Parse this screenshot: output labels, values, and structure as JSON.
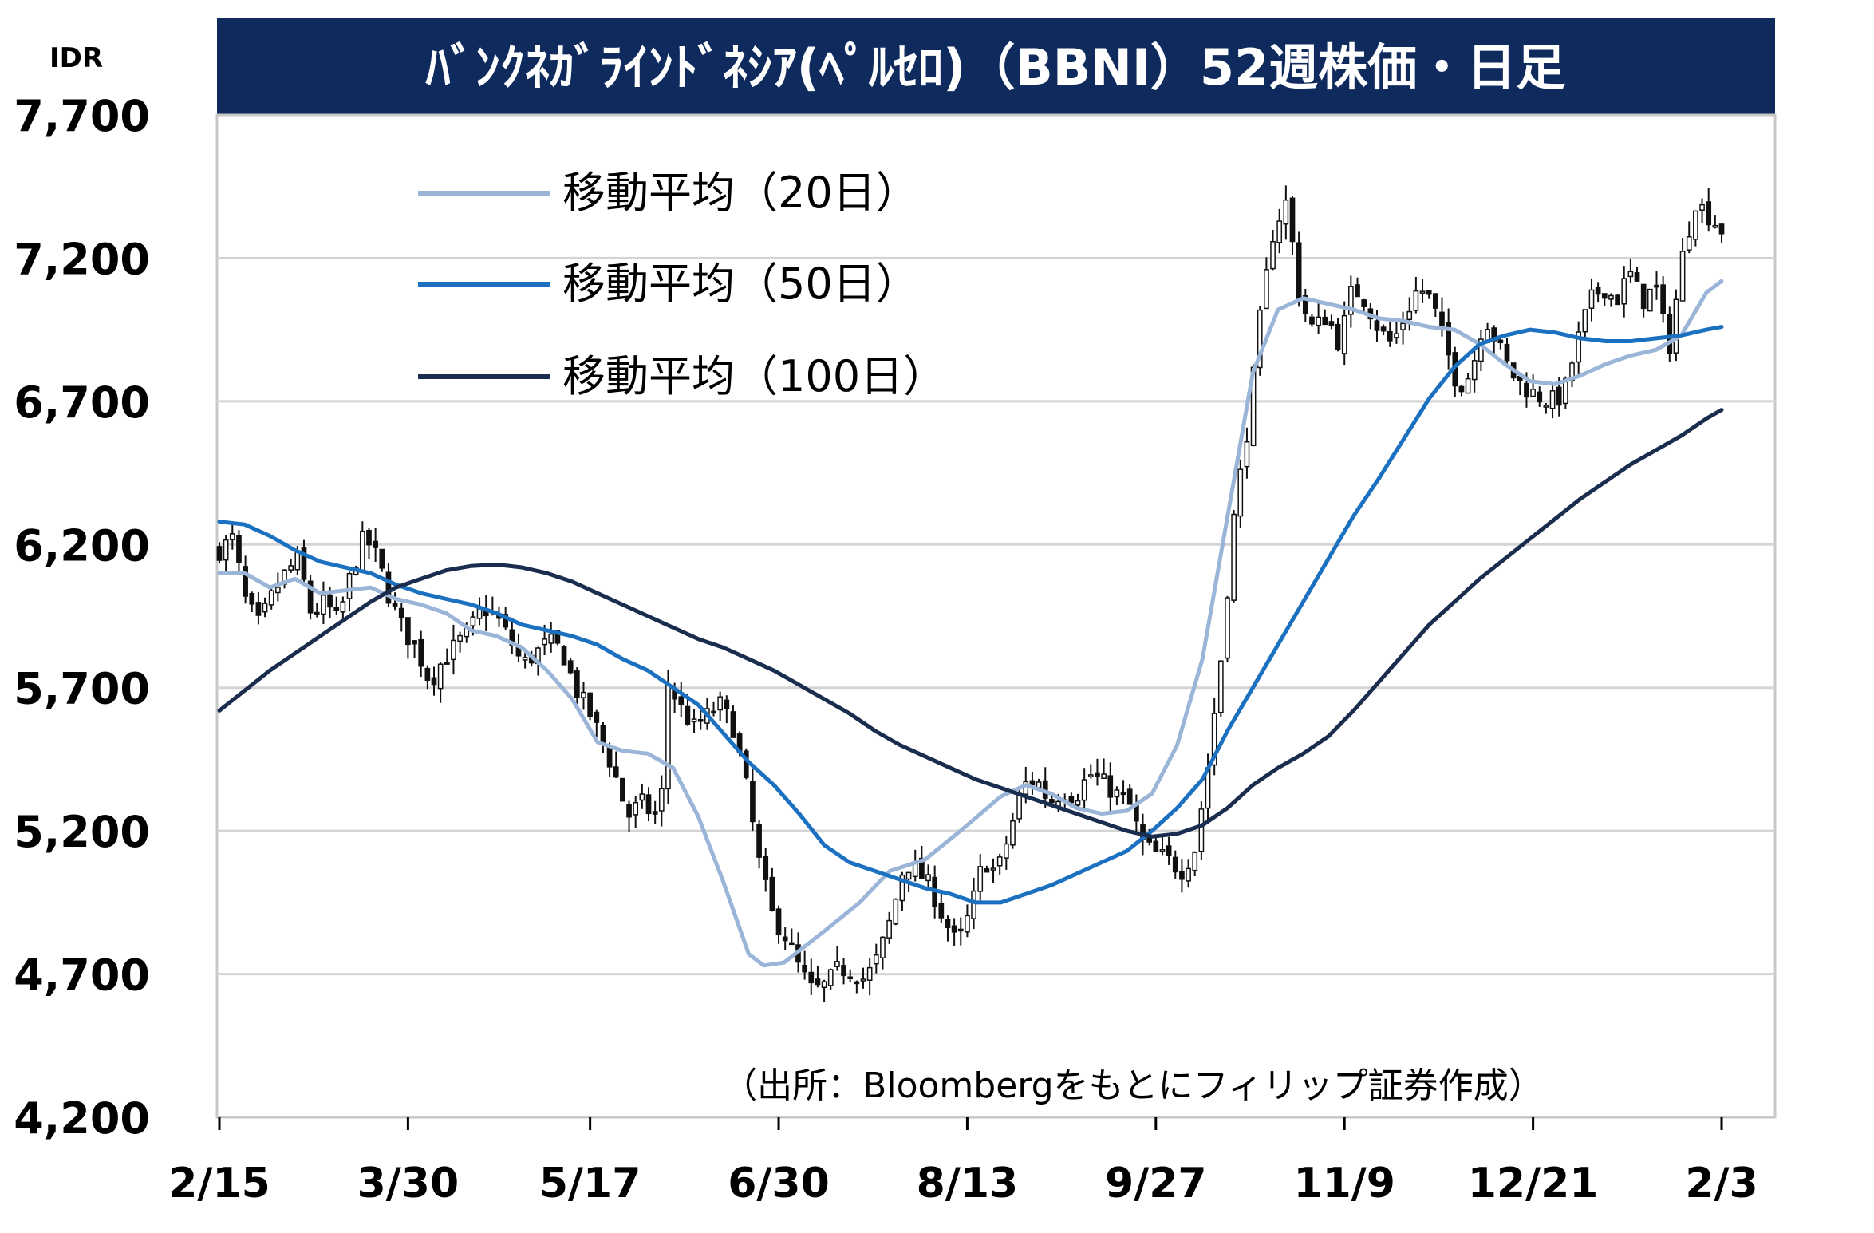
{
  "chart_data": {
    "type": "candlestick-line",
    "title": "ﾊﾞﾝｸﾈｶﾞﾗｲﾝﾄﾞﾈｼｱ(ﾍﾟﾙｾﾛ)（BBNI）52週株価・日足",
    "unit_label": "IDR",
    "ylim": [
      4200,
      7700
    ],
    "y_ticks": [
      "7,700",
      "7,200",
      "6,700",
      "6,200",
      "5,700",
      "5,200",
      "4,700",
      "4,200"
    ],
    "y_tick_values": [
      7700,
      7200,
      6700,
      6200,
      5700,
      5200,
      4700,
      4200
    ],
    "x_ticks": [
      "2/15",
      "3/30",
      "5/17",
      "6/30",
      "8/13",
      "9/27",
      "11/9",
      "12/21",
      "2/3"
    ],
    "x_tick_index": [
      0,
      29,
      57,
      86,
      115,
      144,
      173,
      202,
      231
    ],
    "n_days": 232,
    "grid": true,
    "legend_placement": "top-left",
    "source_note": "（出所：Bloombergをもとにフィリップ証券作成）",
    "colors": {
      "title_bg": "#0f2a5c",
      "ma20": "#9ab5d8",
      "ma50": "#1b70c0",
      "ma100": "#1a2d4e",
      "candle_up": "#ffffff",
      "candle_down": "#111111",
      "candle_outline": "#111111"
    },
    "series": [
      {
        "name": "移動平均（20日）",
        "key": "ma20",
        "points": [
          [
            0,
            6100
          ],
          [
            5,
            6100
          ],
          [
            10,
            6050
          ],
          [
            15,
            6080
          ],
          [
            20,
            6030
          ],
          [
            25,
            6040
          ],
          [
            30,
            6050
          ],
          [
            35,
            6010
          ],
          [
            40,
            5990
          ],
          [
            45,
            5960
          ],
          [
            50,
            5900
          ],
          [
            55,
            5880
          ],
          [
            60,
            5840
          ],
          [
            65,
            5760
          ],
          [
            70,
            5660
          ],
          [
            75,
            5510
          ],
          [
            80,
            5480
          ],
          [
            85,
            5470
          ],
          [
            90,
            5420
          ],
          [
            95,
            5250
          ],
          [
            100,
            5020
          ],
          [
            105,
            4770
          ],
          [
            108,
            4730
          ],
          [
            112,
            4740
          ],
          [
            120,
            4850
          ],
          [
            127,
            4950
          ],
          [
            133,
            5060
          ],
          [
            140,
            5100
          ],
          [
            147,
            5200
          ],
          [
            155,
            5320
          ],
          [
            160,
            5360
          ],
          [
            165,
            5330
          ],
          [
            170,
            5280
          ],
          [
            175,
            5260
          ],
          [
            180,
            5270
          ],
          [
            185,
            5330
          ],
          [
            190,
            5500
          ],
          [
            195,
            5800
          ],
          [
            200,
            6300
          ],
          [
            205,
            6800
          ],
          [
            210,
            7020
          ],
          [
            215,
            7060
          ],
          [
            220,
            7040
          ],
          [
            225,
            7020
          ],
          [
            230,
            6990
          ],
          [
            235,
            6980
          ],
          [
            240,
            6960
          ],
          [
            245,
            6950
          ],
          [
            250,
            6900
          ],
          [
            255,
            6830
          ],
          [
            260,
            6770
          ],
          [
            265,
            6760
          ],
          [
            270,
            6790
          ],
          [
            275,
            6830
          ],
          [
            280,
            6860
          ],
          [
            285,
            6880
          ],
          [
            290,
            6930
          ],
          [
            295,
            7080
          ],
          [
            298,
            7120
          ]
        ]
      },
      {
        "name": "移動平均（50日）",
        "key": "ma50",
        "points": [
          [
            0,
            6280
          ],
          [
            5,
            6270
          ],
          [
            10,
            6230
          ],
          [
            15,
            6180
          ],
          [
            20,
            6140
          ],
          [
            25,
            6120
          ],
          [
            30,
            6100
          ],
          [
            35,
            6060
          ],
          [
            40,
            6030
          ],
          [
            45,
            6010
          ],
          [
            50,
            5990
          ],
          [
            55,
            5960
          ],
          [
            60,
            5920
          ],
          [
            65,
            5900
          ],
          [
            70,
            5880
          ],
          [
            75,
            5850
          ],
          [
            80,
            5800
          ],
          [
            85,
            5760
          ],
          [
            90,
            5700
          ],
          [
            95,
            5640
          ],
          [
            100,
            5540
          ],
          [
            105,
            5440
          ],
          [
            110,
            5360
          ],
          [
            115,
            5260
          ],
          [
            120,
            5150
          ],
          [
            125,
            5090
          ],
          [
            130,
            5060
          ],
          [
            135,
            5030
          ],
          [
            140,
            5000
          ],
          [
            145,
            4980
          ],
          [
            150,
            4950
          ],
          [
            155,
            4950
          ],
          [
            160,
            4980
          ],
          [
            165,
            5010
          ],
          [
            170,
            5050
          ],
          [
            175,
            5090
          ],
          [
            180,
            5130
          ],
          [
            185,
            5200
          ],
          [
            190,
            5280
          ],
          [
            195,
            5380
          ],
          [
            200,
            5550
          ],
          [
            205,
            5700
          ],
          [
            210,
            5850
          ],
          [
            215,
            6000
          ],
          [
            220,
            6150
          ],
          [
            225,
            6300
          ],
          [
            230,
            6430
          ],
          [
            235,
            6570
          ],
          [
            240,
            6710
          ],
          [
            245,
            6820
          ],
          [
            250,
            6900
          ],
          [
            255,
            6930
          ],
          [
            260,
            6950
          ],
          [
            265,
            6940
          ],
          [
            270,
            6920
          ],
          [
            275,
            6910
          ],
          [
            280,
            6910
          ],
          [
            285,
            6920
          ],
          [
            290,
            6930
          ],
          [
            295,
            6950
          ],
          [
            298,
            6960
          ]
        ]
      },
      {
        "name": "移動平均（100日）",
        "key": "ma100",
        "points": [
          [
            0,
            5620
          ],
          [
            5,
            5690
          ],
          [
            10,
            5760
          ],
          [
            15,
            5820
          ],
          [
            20,
            5880
          ],
          [
            25,
            5940
          ],
          [
            30,
            6000
          ],
          [
            35,
            6050
          ],
          [
            40,
            6080
          ],
          [
            45,
            6110
          ],
          [
            50,
            6125
          ],
          [
            55,
            6130
          ],
          [
            60,
            6120
          ],
          [
            65,
            6100
          ],
          [
            70,
            6070
          ],
          [
            75,
            6030
          ],
          [
            80,
            5990
          ],
          [
            85,
            5950
          ],
          [
            90,
            5910
          ],
          [
            95,
            5870
          ],
          [
            100,
            5840
          ],
          [
            105,
            5800
          ],
          [
            110,
            5760
          ],
          [
            115,
            5710
          ],
          [
            120,
            5660
          ],
          [
            125,
            5610
          ],
          [
            130,
            5550
          ],
          [
            135,
            5500
          ],
          [
            140,
            5460
          ],
          [
            145,
            5420
          ],
          [
            150,
            5380
          ],
          [
            155,
            5350
          ],
          [
            160,
            5320
          ],
          [
            165,
            5290
          ],
          [
            170,
            5260
          ],
          [
            175,
            5230
          ],
          [
            180,
            5200
          ],
          [
            185,
            5180
          ],
          [
            190,
            5190
          ],
          [
            195,
            5220
          ],
          [
            200,
            5280
          ],
          [
            205,
            5360
          ],
          [
            210,
            5420
          ],
          [
            215,
            5470
          ],
          [
            220,
            5530
          ],
          [
            225,
            5620
          ],
          [
            230,
            5720
          ],
          [
            235,
            5820
          ],
          [
            240,
            5920
          ],
          [
            245,
            6000
          ],
          [
            250,
            6080
          ],
          [
            255,
            6150
          ],
          [
            260,
            6220
          ],
          [
            265,
            6290
          ],
          [
            270,
            6360
          ],
          [
            275,
            6420
          ],
          [
            280,
            6480
          ],
          [
            285,
            6530
          ],
          [
            290,
            6580
          ],
          [
            295,
            6640
          ],
          [
            298,
            6670
          ]
        ]
      }
    ],
    "candle_path": [
      [
        0,
        6180
      ],
      [
        4,
        6220
      ],
      [
        8,
        6000
      ],
      [
        12,
        5920
      ],
      [
        16,
        6020
      ],
      [
        20,
        6100
      ],
      [
        24,
        6150
      ],
      [
        28,
        5950
      ],
      [
        32,
        6000
      ],
      [
        36,
        5930
      ],
      [
        40,
        6100
      ],
      [
        44,
        6230
      ],
      [
        48,
        6150
      ],
      [
        52,
        6000
      ],
      [
        56,
        5900
      ],
      [
        60,
        5830
      ],
      [
        64,
        5720
      ],
      [
        68,
        5800
      ],
      [
        72,
        5850
      ],
      [
        76,
        5900
      ],
      [
        80,
        5980
      ],
      [
        84,
        5950
      ],
      [
        88,
        5870
      ],
      [
        92,
        5780
      ],
      [
        96,
        5820
      ],
      [
        100,
        5860
      ],
      [
        104,
        5830
      ],
      [
        108,
        5700
      ],
      [
        112,
        5620
      ],
      [
        116,
        5520
      ],
      [
        120,
        5400
      ],
      [
        124,
        5250
      ],
      [
        128,
        5300
      ],
      [
        132,
        5250
      ],
      [
        134,
        5280
      ],
      [
        136,
        5720
      ],
      [
        140,
        5630
      ],
      [
        144,
        5560
      ],
      [
        148,
        5600
      ],
      [
        152,
        5640
      ],
      [
        156,
        5560
      ],
      [
        160,
        5350
      ],
      [
        164,
        5080
      ],
      [
        168,
        4900
      ],
      [
        172,
        4830
      ],
      [
        176,
        4720
      ],
      [
        180,
        4640
      ],
      [
        184,
        4660
      ],
      [
        188,
        4720
      ],
      [
        192,
        4710
      ],
      [
        196,
        4680
      ],
      [
        200,
        4760
      ],
      [
        204,
        4900
      ],
      [
        208,
        5090
      ],
      [
        212,
        5060
      ],
      [
        216,
        5000
      ],
      [
        220,
        4890
      ],
      [
        224,
        4800
      ],
      [
        228,
        4920
      ],
      [
        232,
        5100
      ],
      [
        236,
        5050
      ],
      [
        240,
        5200
      ],
      [
        244,
        5360
      ],
      [
        248,
        5380
      ],
      [
        252,
        5300
      ],
      [
        256,
        5340
      ],
      [
        260,
        5320
      ],
      [
        264,
        5400
      ],
      [
        268,
        5370
      ],
      [
        272,
        5330
      ],
      [
        276,
        5300
      ],
      [
        280,
        5160
      ],
      [
        284,
        5120
      ],
      [
        288,
        5100
      ],
      [
        292,
        5060
      ],
      [
        296,
        5130
      ],
      [
        300,
        5420
      ],
      [
        304,
        5800
      ],
      [
        308,
        6300
      ],
      [
        312,
        6600
      ],
      [
        316,
        7000
      ],
      [
        320,
        7300
      ],
      [
        324,
        7400
      ],
      [
        328,
        7050
      ],
      [
        332,
        6950
      ],
      [
        336,
        7000
      ],
      [
        340,
        6900
      ],
      [
        344,
        7100
      ],
      [
        348,
        7050
      ],
      [
        352,
        6950
      ],
      [
        356,
        6900
      ],
      [
        360,
        7000
      ],
      [
        364,
        7100
      ],
      [
        368,
        7050
      ],
      [
        372,
        6900
      ],
      [
        376,
        6750
      ],
      [
        380,
        6800
      ],
      [
        384,
        7000
      ],
      [
        388,
        6900
      ],
      [
        392,
        6800
      ],
      [
        396,
        6750
      ],
      [
        400,
        6720
      ],
      [
        404,
        6700
      ],
      [
        408,
        6720
      ],
      [
        412,
        6900
      ],
      [
        416,
        7050
      ],
      [
        420,
        7100
      ],
      [
        424,
        7050
      ],
      [
        428,
        7150
      ],
      [
        432,
        7050
      ],
      [
        436,
        7100
      ],
      [
        440,
        6880
      ],
      [
        444,
        7200
      ],
      [
        448,
        7400
      ],
      [
        452,
        7350
      ],
      [
        456,
        7300
      ]
    ]
  }
}
